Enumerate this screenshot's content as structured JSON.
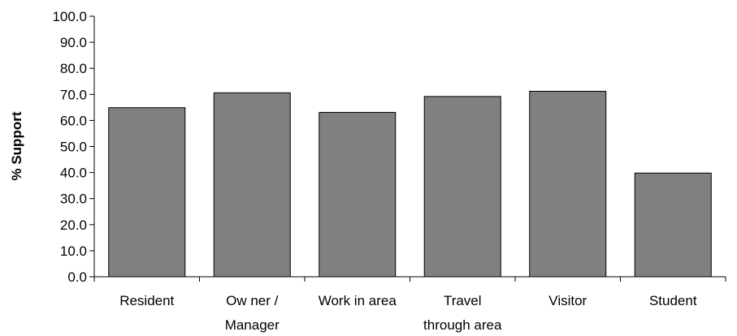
{
  "chart_data": {
    "type": "bar",
    "title": "",
    "xlabel": "",
    "ylabel": "% Support",
    "ylim": [
      0,
      100
    ],
    "yticks": [
      "0.0",
      "10.0",
      "20.0",
      "30.0",
      "40.0",
      "50.0",
      "60.0",
      "70.0",
      "80.0",
      "90.0",
      "100.0"
    ],
    "categories": [
      [
        "Resident"
      ],
      [
        "Ow ner /",
        "Manager"
      ],
      [
        "Work in area"
      ],
      [
        "Travel",
        "through area"
      ],
      [
        "Visitor"
      ],
      [
        "Student"
      ]
    ],
    "values": [
      64.9,
      70.6,
      63.1,
      69.2,
      71.2,
      39.8
    ],
    "bar_color": "#808080",
    "grid": false,
    "legend": "none"
  }
}
